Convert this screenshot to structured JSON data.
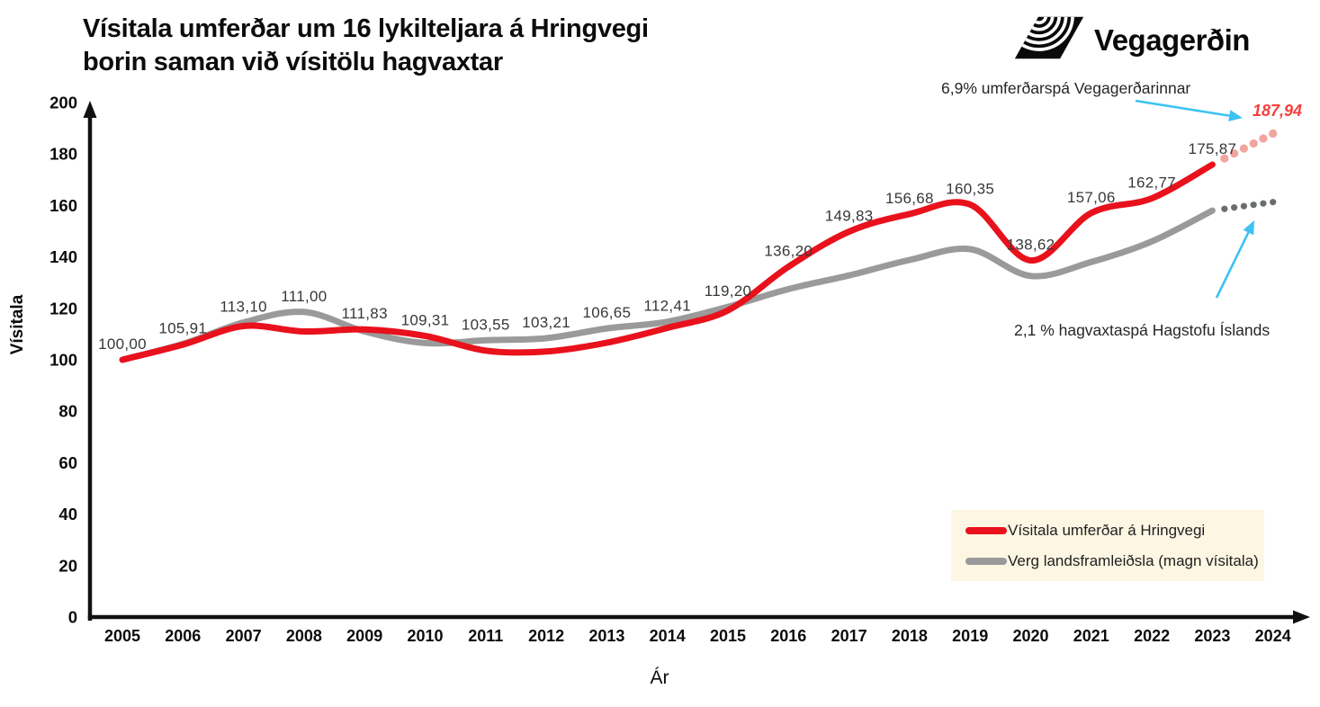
{
  "header": {
    "title_line1": "Vísitala umferðar um 16 lykilteljara á Hringvegi",
    "title_line2": "borin saman við vísitölu hagvaxtar",
    "logo_text": "Vegagerðin"
  },
  "annotations": {
    "traffic_forecast_label": "6,9% umferðarspá Vegagerðarinnar",
    "traffic_forecast_value": "187,94",
    "gdp_forecast_label": "2,1 % hagvaxtaspá Hagstofu Íslands"
  },
  "axes": {
    "y_label": "Vísitala",
    "x_label": "Ár"
  },
  "legend": {
    "items": [
      {
        "label": "Vísitala umferðar á Hringvegi",
        "color": "#e8111c"
      },
      {
        "label": "Verg landsframleiðsla (magn vísitala)",
        "color": "#9a9a9a"
      }
    ]
  },
  "colors": {
    "traffic_line": "#e8111c",
    "traffic_forecast_dots": "#f2a49f",
    "gdp_line": "#9a9a9a",
    "gdp_forecast_dots": "#6a6d70",
    "annotation_arrow": "#3cc3f2",
    "legend_background": "#fdf6e3",
    "axis": "#111111",
    "forecast_value_text": "#f5413d"
  },
  "chart_data": {
    "type": "line",
    "title": "Vísitala umferðar um 16 lykilteljara á Hringvegi borin saman við vísitölu hagvaxtar",
    "xlabel": "Ár",
    "ylabel": "Vísitala",
    "ylim": [
      0,
      200
    ],
    "yticks": [
      0,
      20,
      40,
      60,
      80,
      100,
      120,
      140,
      160,
      180,
      200
    ],
    "x": [
      2005,
      2006,
      2007,
      2008,
      2009,
      2010,
      2011,
      2012,
      2013,
      2014,
      2015,
      2016,
      2017,
      2018,
      2019,
      2020,
      2021,
      2022,
      2023,
      2024
    ],
    "forecast_from_index": 18,
    "series": [
      {
        "name": "Vísitala umferðar á Hringvegi",
        "color": "#e8111c",
        "dot_color": "#f2a49f",
        "values": [
          100.0,
          105.91,
          113.1,
          111.0,
          111.83,
          109.31,
          103.55,
          103.21,
          106.65,
          112.41,
          119.2,
          136.2,
          149.83,
          156.68,
          160.35,
          138.62,
          157.06,
          162.77,
          175.87,
          187.94
        ],
        "point_labels": [
          "100,00",
          "105,91",
          "113,10",
          "111,00",
          "111,83",
          "109,31",
          "103,55",
          "103,21",
          "106,65",
          "112,41",
          "119,20",
          "136,20",
          "149,83",
          "156,68",
          "160,35",
          "138,62",
          "157,06",
          "162,77",
          "175,87"
        ]
      },
      {
        "name": "Verg landsframleiðsla (magn vísitala)",
        "color": "#9a9a9a",
        "dot_color": "#6a6d70",
        "values": [
          100.0,
          106.2,
          114.5,
          118.6,
          111.0,
          106.5,
          107.6,
          108.4,
          112.2,
          114.8,
          120.6,
          127.5,
          132.8,
          138.8,
          143.0,
          132.6,
          138.0,
          146.0,
          158.0,
          161.3
        ],
        "point_labels": []
      }
    ],
    "legend_position": "lower right",
    "grid": false
  }
}
